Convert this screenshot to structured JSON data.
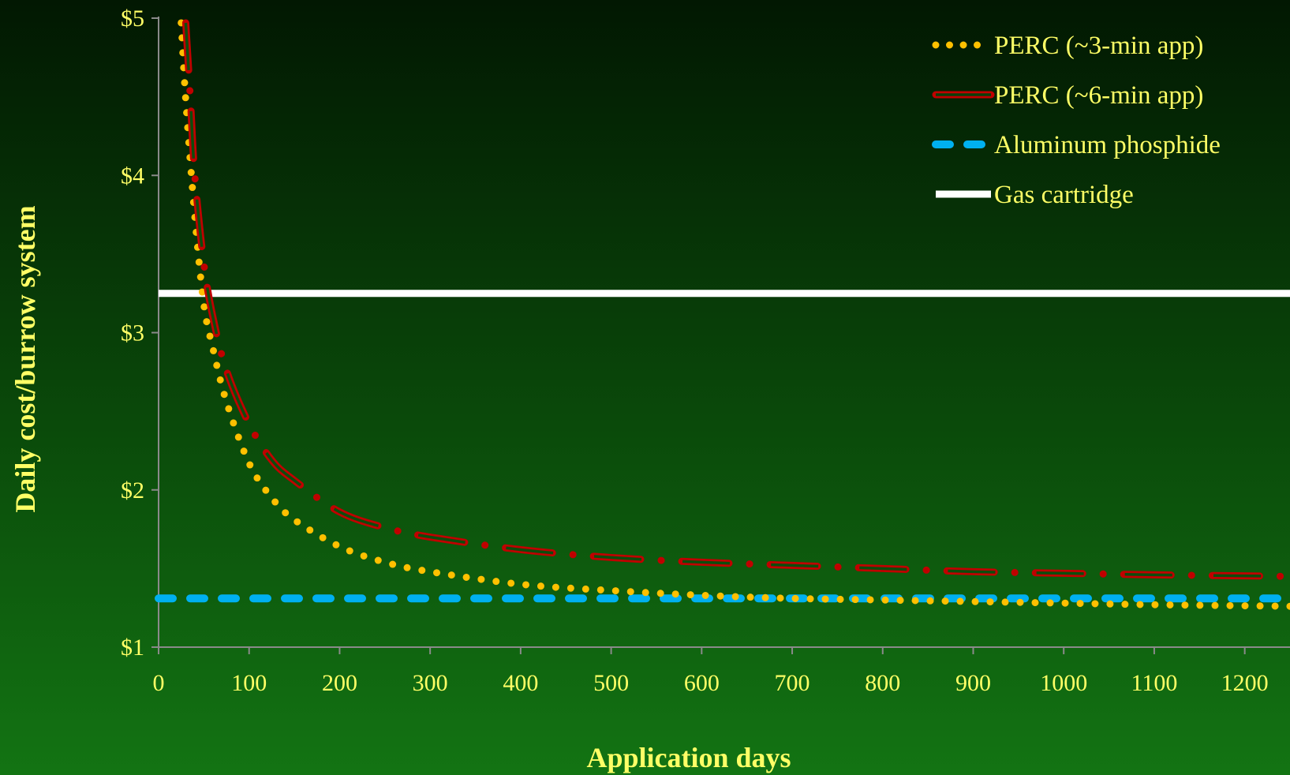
{
  "chart_data": {
    "type": "line",
    "title": "",
    "xlabel": "Application  days",
    "ylabel": "Daily cost/burrow system",
    "xlim": [
      0,
      1250
    ],
    "ylim": [
      1,
      5
    ],
    "x_ticks": [
      "0",
      "100",
      "200",
      "300",
      "400",
      "500",
      "600",
      "700",
      "800",
      "900",
      "1000",
      "1100",
      "1200"
    ],
    "x_tick_values": [
      0,
      100,
      200,
      300,
      400,
      500,
      600,
      700,
      800,
      900,
      1000,
      1100,
      1200
    ],
    "y_ticks": [
      "$1",
      "$2",
      "$3",
      "$4",
      "$5"
    ],
    "y_tick_values": [
      1,
      2,
      3,
      4,
      5
    ],
    "grid": false,
    "legend_position": "top-right",
    "series": [
      {
        "name": "PERC (~3-min app)",
        "style": "dotted",
        "color": "#ffc000",
        "x": [
          25,
          30,
          40,
          50,
          60,
          75,
          100,
          125,
          150,
          200,
          250,
          300,
          400,
          500,
          600,
          700,
          800,
          900,
          1000,
          1100,
          1250
        ],
        "y": [
          4.97,
          4.48,
          3.74,
          3.18,
          2.9,
          2.56,
          2.17,
          1.95,
          1.81,
          1.64,
          1.54,
          1.48,
          1.4,
          1.36,
          1.33,
          1.31,
          1.3,
          1.29,
          1.28,
          1.27,
          1.26
        ]
      },
      {
        "name": "PERC (~6-min app)",
        "style": "dash-dot",
        "color": "#c00000",
        "x": [
          30,
          35,
          40,
          50,
          60,
          75,
          100,
          125,
          150,
          200,
          250,
          300,
          400,
          500,
          600,
          700,
          800,
          900,
          1000,
          1100,
          1250
        ],
        "y": [
          4.97,
          4.5,
          4.0,
          3.44,
          3.1,
          2.76,
          2.42,
          2.19,
          2.06,
          1.86,
          1.76,
          1.7,
          1.62,
          1.57,
          1.54,
          1.52,
          1.5,
          1.48,
          1.47,
          1.46,
          1.45
        ]
      },
      {
        "name": "Aluminum phosphide",
        "style": "dashed",
        "color": "#00b0f0",
        "x": [
          0,
          1250
        ],
        "y": [
          1.31,
          1.31
        ]
      },
      {
        "name": "Gas cartridge",
        "style": "solid",
        "color": "#ffffff",
        "x": [
          0,
          1250
        ],
        "y": [
          3.25,
          3.25
        ]
      }
    ]
  }
}
